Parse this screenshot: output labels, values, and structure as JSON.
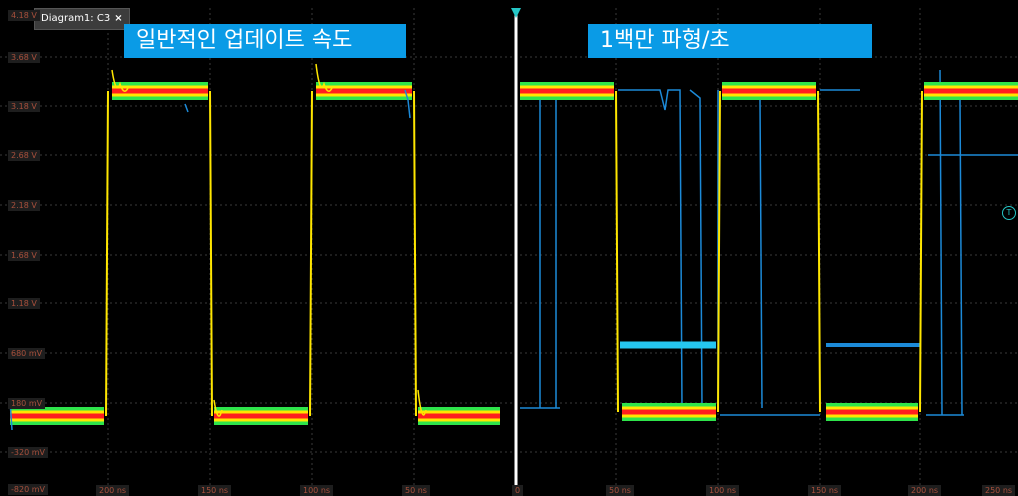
{
  "tab": {
    "label": "Diagram1: C3",
    "close": "×"
  },
  "banners": {
    "left": "일반적인 업데이트 속도",
    "right": "1백만 파형/초"
  },
  "y_labels": [
    "4.18 V",
    "3.68 V",
    "3.18 V",
    "2.68 V",
    "2.18 V",
    "1.68 V",
    "1.18 V",
    "680 mV",
    "180 mV",
    "-320 mV",
    "-820 mV"
  ],
  "x_labels": [
    "200 ns",
    "150 ns",
    "100 ns",
    "50 ns",
    "0",
    "50 ns",
    "100 ns",
    "150 ns",
    "200 ns",
    "250 ns"
  ],
  "trigger_marker": "T",
  "colors": {
    "banner": "#0a9be6",
    "divider": "#ffffff",
    "trace_blue": "#1c8ad8",
    "trace_red": "#ff1e1e",
    "trace_yellow": "#ffe600",
    "trace_green": "#2ee44b"
  }
}
